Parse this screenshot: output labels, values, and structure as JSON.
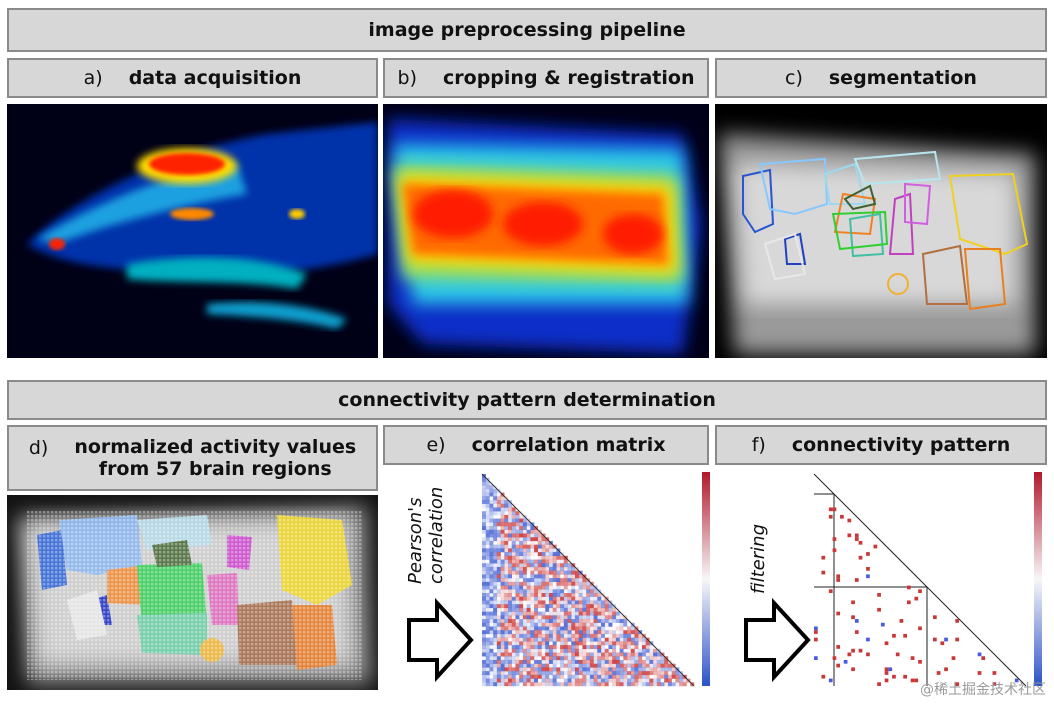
{
  "pipeline_title": "image preprocessing pipeline",
  "panels_top": [
    {
      "letter": "a)",
      "title": "data acquisition"
    },
    {
      "letter": "b)",
      "title": "cropping & registration"
    },
    {
      "letter": "c)",
      "title": "segmentation"
    }
  ],
  "connectivity_title": "connectivity pattern determination",
  "panels_bottom": [
    {
      "letter": "d)",
      "title_line1": "normalized activity values",
      "title_line2": "from 57 brain regions"
    },
    {
      "letter": "e)",
      "title": "correlation matrix"
    },
    {
      "letter": "f)",
      "title": "connectivity pattern"
    }
  ],
  "arrows": [
    {
      "line1": "Pearson's",
      "line2": "correlation"
    },
    {
      "line1": "filtering"
    }
  ],
  "colorbar": {
    "top_color": "#b2182b",
    "mid_color": "#f7f7f7",
    "bottom_color": "#2c52c9"
  },
  "watermark": "@稀土掘金技术社区"
}
